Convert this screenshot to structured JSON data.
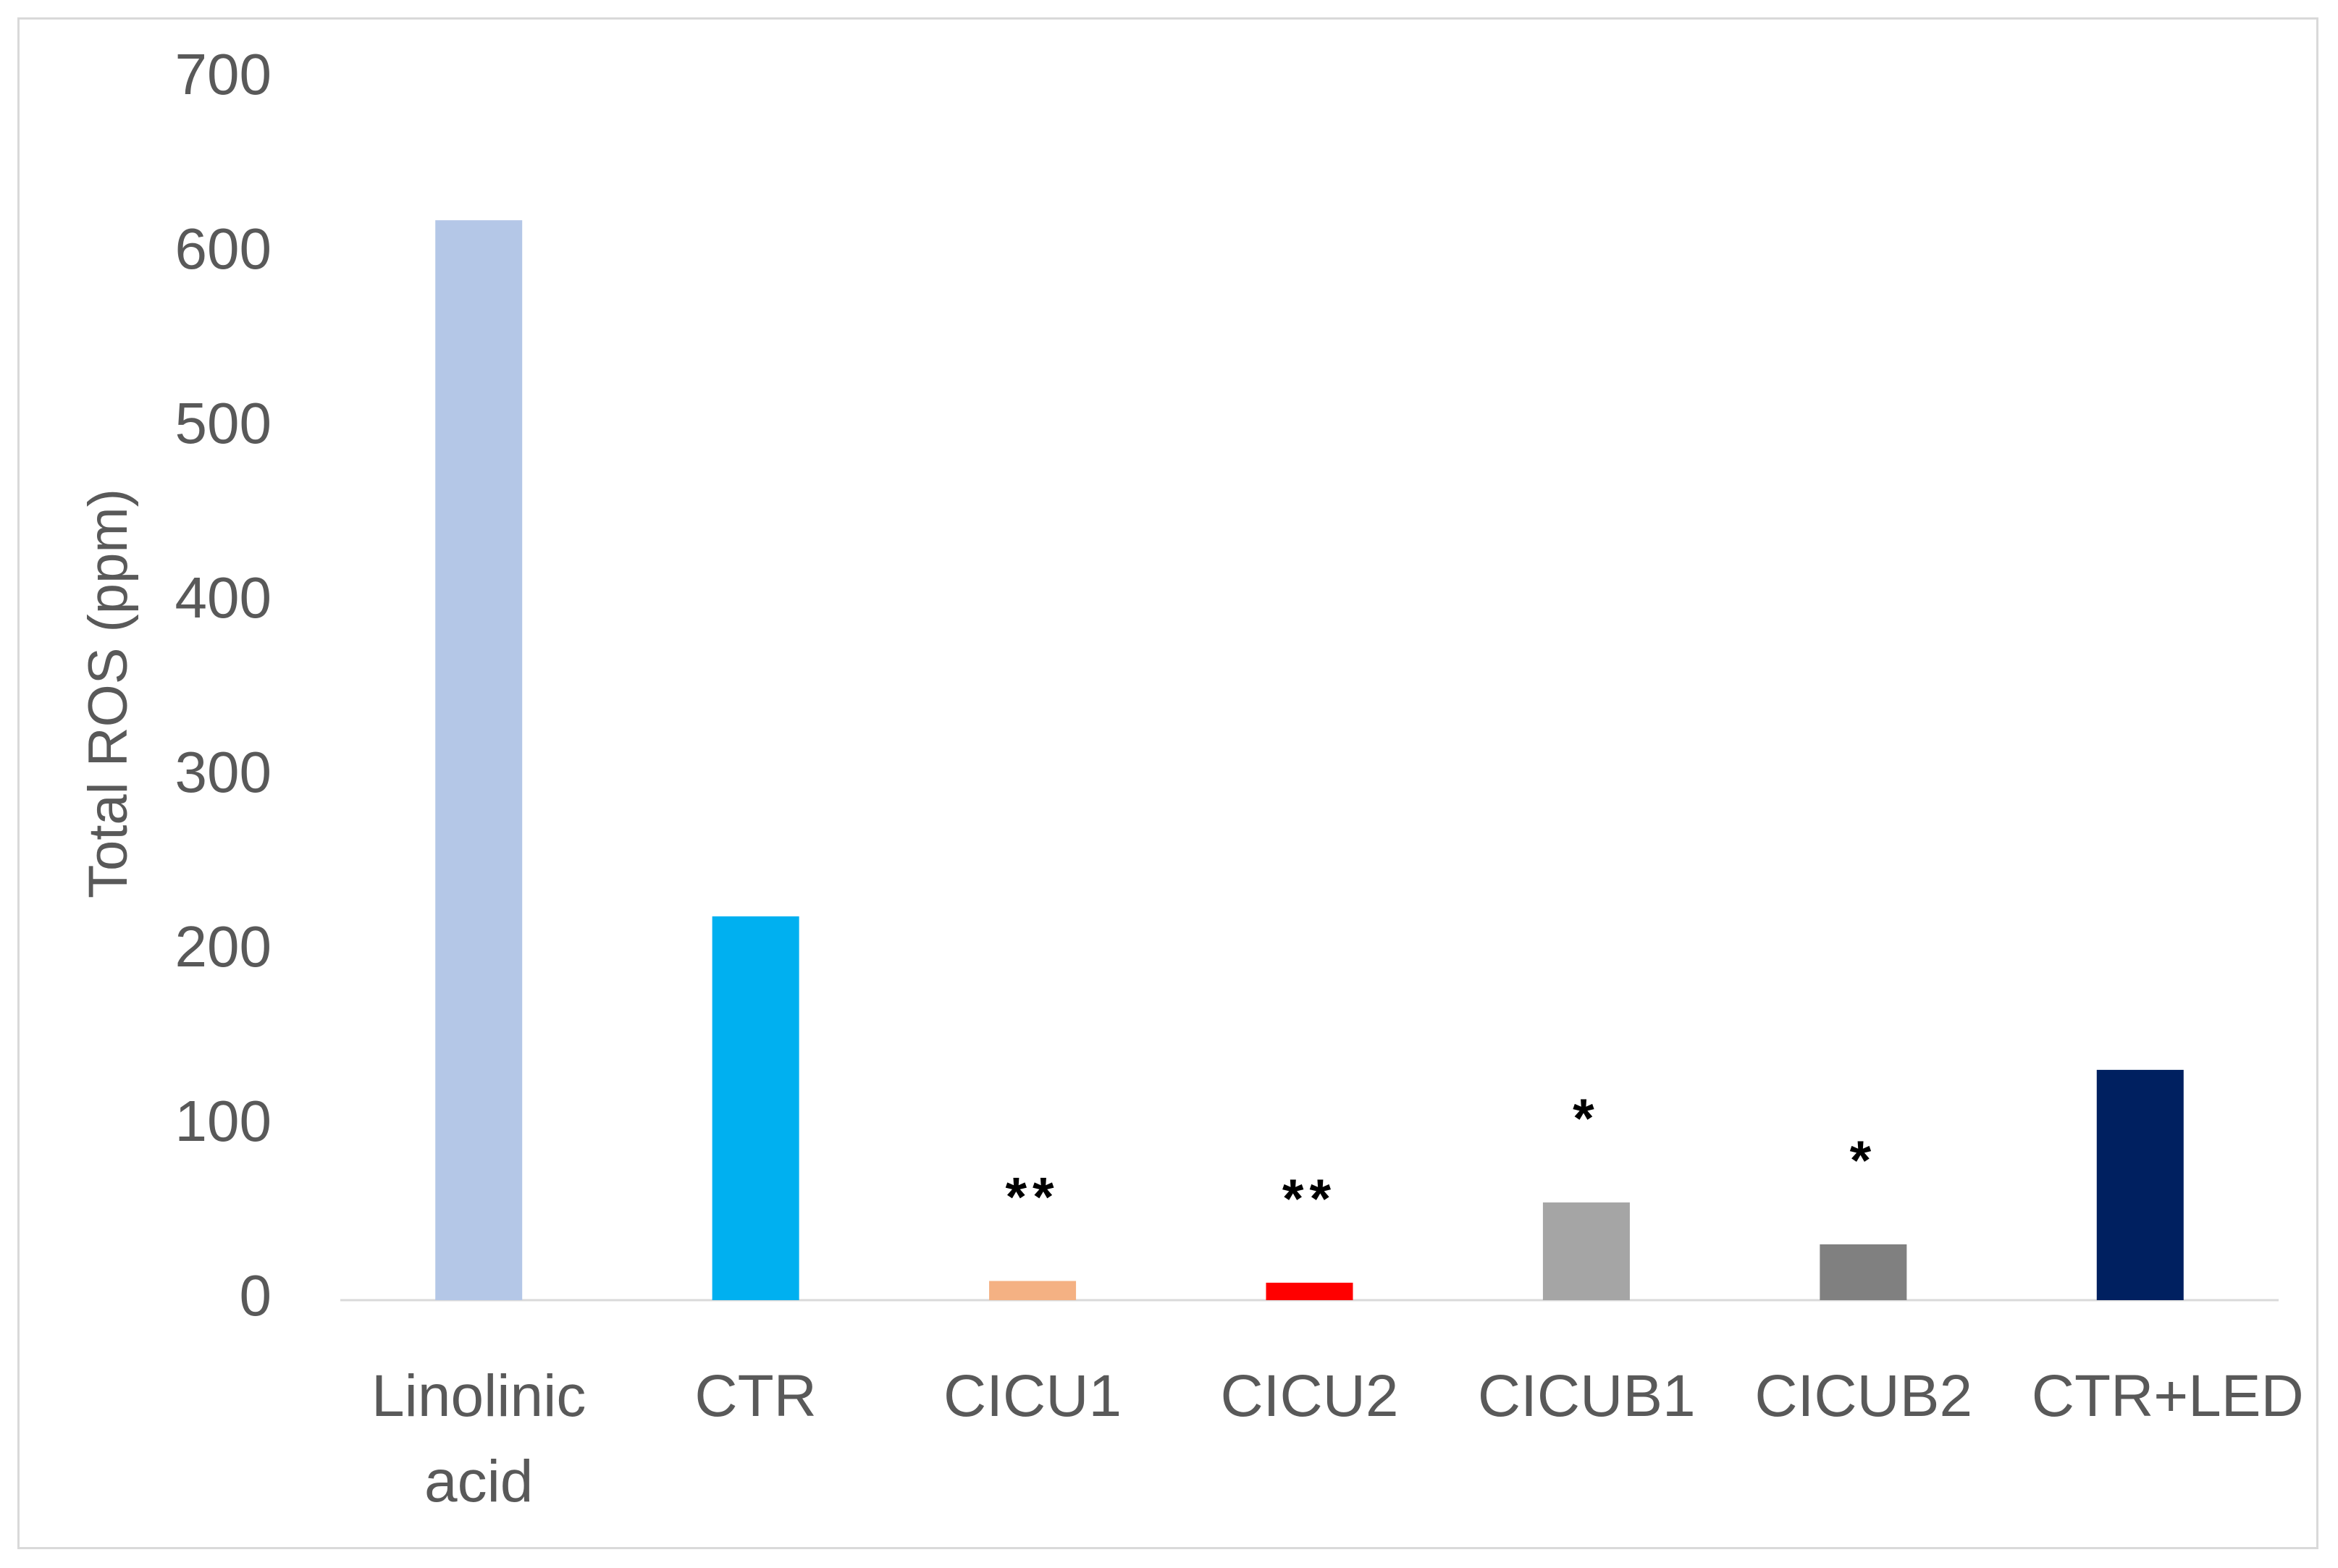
{
  "chart_data": {
    "type": "bar",
    "y_label": "Total ROS (ppm)",
    "categories": [
      "Linolinic acid",
      "CTR",
      "CICU1",
      "CICU2",
      "CICUB1",
      "CICUB2",
      "CTR+LED"
    ],
    "values": [
      619,
      220,
      11,
      10,
      56,
      32,
      132
    ],
    "colors": [
      "#b4c7e7",
      "#00b0f0",
      "#f4b183",
      "#ff0000",
      "#a5a5a5",
      "#808080",
      "#002060"
    ],
    "annotations": [
      null,
      null,
      "**",
      "**",
      "*",
      "*",
      null
    ],
    "ylim": [
      0,
      700
    ],
    "yticks": [
      0,
      100,
      200,
      300,
      400,
      500,
      600,
      700
    ],
    "grid": false
  }
}
